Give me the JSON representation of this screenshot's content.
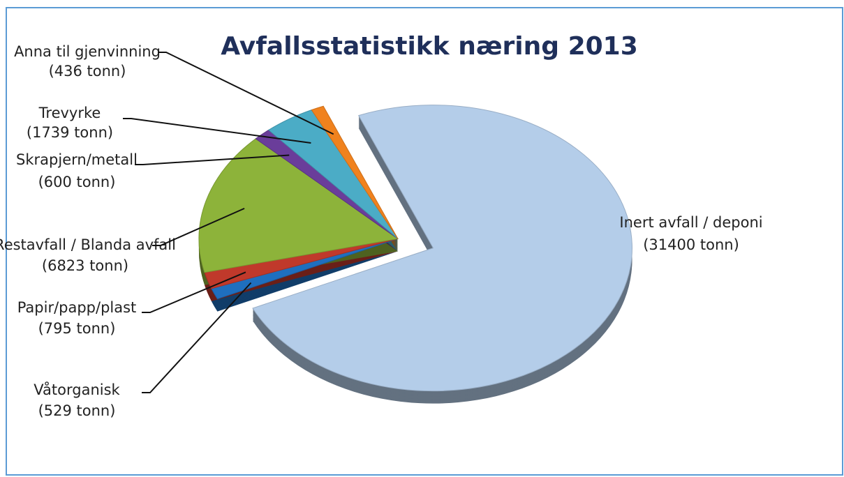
{
  "chart_data": {
    "type": "pie",
    "title": "Avfallsstatistikk næring 2013",
    "categories": [
      "Inert avfall / deponi",
      "Våtorganisk",
      "Papir/papp/plast",
      "Restavfall / Blanda avfall",
      "Skrapjern/metall",
      "Trevyrke",
      "Anna til gjenvinning"
    ],
    "values": [
      31400,
      529,
      795,
      6823,
      600,
      1739,
      436
    ],
    "value_labels": [
      "(31400 tonn)",
      "(529 tonn)",
      "(795 tonn)",
      "(6823 tonn)",
      "(600 tonn)",
      "(1739 tonn)",
      "(436 tonn)"
    ],
    "colors": [
      "#b4cde9",
      "#1f6fbf",
      "#c0392b",
      "#8db33a",
      "#6a3d9a",
      "#4bacc6",
      "#f0821e"
    ]
  }
}
